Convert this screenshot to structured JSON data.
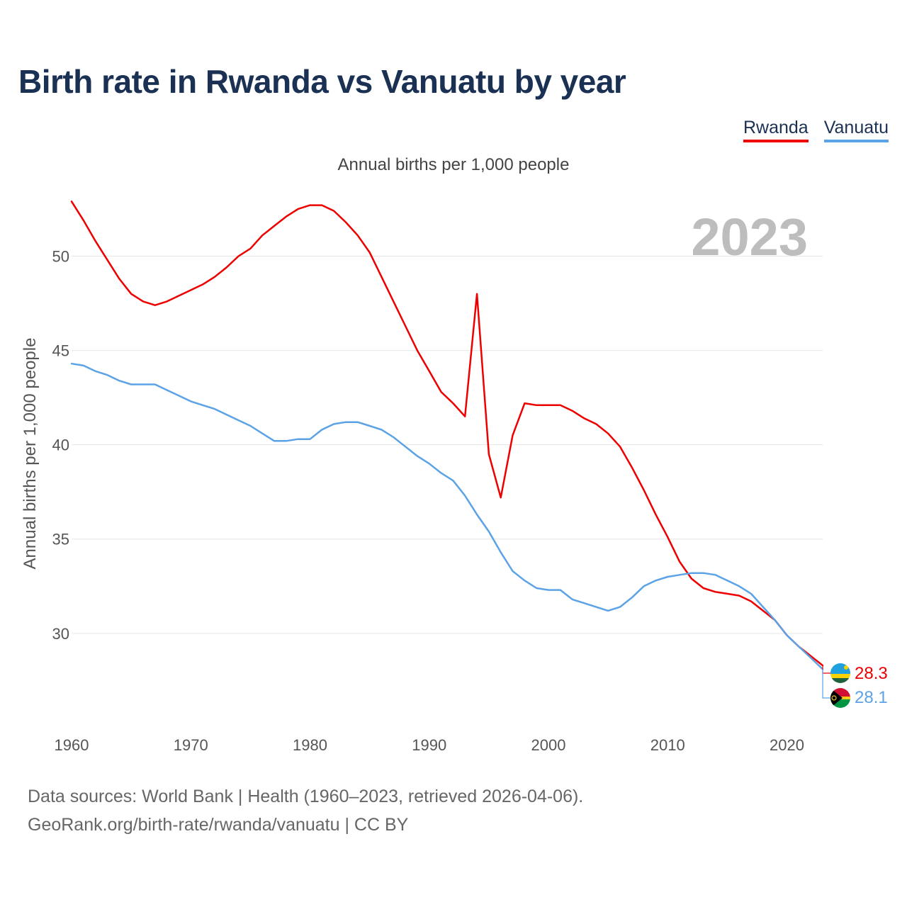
{
  "title": "Birth rate in Rwanda vs Vanuatu by year",
  "legend": [
    {
      "label": "Rwanda",
      "color": "#ee0000"
    },
    {
      "label": "Vanuatu",
      "color": "#5ba3e6"
    }
  ],
  "footer": {
    "line1": "Data sources: World Bank | Health (1960–2023, retrieved 2026-04-06).",
    "line2": "GeoRank.org/birth-rate/rwanda/vanuatu | CC BY"
  },
  "chart_data": {
    "type": "line",
    "title": "Annual births per 1,000 people",
    "xlabel": "",
    "ylabel": "Annual births per 1,000 people",
    "year_label": "2023",
    "xlim": [
      1960,
      2023
    ],
    "ylim": [
      26.5,
      54
    ],
    "yticks": [
      30,
      35,
      40,
      45,
      50
    ],
    "xticks": [
      1960,
      1970,
      1980,
      1990,
      2000,
      2010,
      2020
    ],
    "grid": true,
    "x": [
      1960,
      1961,
      1962,
      1963,
      1964,
      1965,
      1966,
      1967,
      1968,
      1969,
      1970,
      1971,
      1972,
      1973,
      1974,
      1975,
      1976,
      1977,
      1978,
      1979,
      1980,
      1981,
      1982,
      1983,
      1984,
      1985,
      1986,
      1987,
      1988,
      1989,
      1990,
      1991,
      1992,
      1993,
      1994,
      1995,
      1996,
      1997,
      1998,
      1999,
      2000,
      2001,
      2002,
      2003,
      2004,
      2005,
      2006,
      2007,
      2008,
      2009,
      2010,
      2011,
      2012,
      2013,
      2014,
      2015,
      2016,
      2017,
      2018,
      2019,
      2020,
      2021,
      2022,
      2023
    ],
    "series": [
      {
        "name": "Rwanda",
        "color": "#ee0000",
        "end_label": "28.3",
        "values": [
          52.9,
          51.9,
          50.8,
          49.8,
          48.8,
          48.0,
          47.6,
          47.4,
          47.6,
          47.9,
          48.2,
          48.5,
          48.9,
          49.4,
          50.0,
          50.4,
          51.1,
          51.6,
          52.1,
          52.5,
          52.7,
          52.7,
          52.4,
          51.8,
          51.1,
          50.2,
          48.9,
          47.6,
          46.3,
          45.0,
          43.9,
          42.8,
          42.2,
          41.5,
          48.0,
          39.5,
          37.2,
          40.5,
          42.2,
          42.1,
          42.1,
          42.1,
          41.8,
          41.4,
          41.1,
          40.6,
          39.9,
          38.8,
          37.6,
          36.3,
          35.1,
          33.8,
          32.9,
          32.4,
          32.2,
          32.1,
          32.0,
          31.7,
          31.2,
          30.7,
          29.9,
          29.3,
          28.8,
          28.3
        ]
      },
      {
        "name": "Vanuatu",
        "color": "#5ba3e6",
        "end_label": "28.1",
        "values": [
          44.3,
          44.2,
          43.9,
          43.7,
          43.4,
          43.2,
          43.2,
          43.2,
          42.9,
          42.6,
          42.3,
          42.1,
          41.9,
          41.6,
          41.3,
          41.0,
          40.6,
          40.2,
          40.2,
          40.3,
          40.3,
          40.8,
          41.1,
          41.2,
          41.2,
          41.0,
          40.8,
          40.4,
          39.9,
          39.4,
          39.0,
          38.5,
          38.1,
          37.3,
          36.3,
          35.4,
          34.3,
          33.3,
          32.8,
          32.4,
          32.3,
          32.3,
          31.8,
          31.6,
          31.4,
          31.2,
          31.4,
          31.9,
          32.5,
          32.8,
          33.0,
          33.1,
          33.2,
          33.2,
          33.1,
          32.8,
          32.5,
          32.1,
          31.4,
          30.7,
          29.9,
          29.3,
          28.7,
          28.1
        ]
      }
    ]
  }
}
